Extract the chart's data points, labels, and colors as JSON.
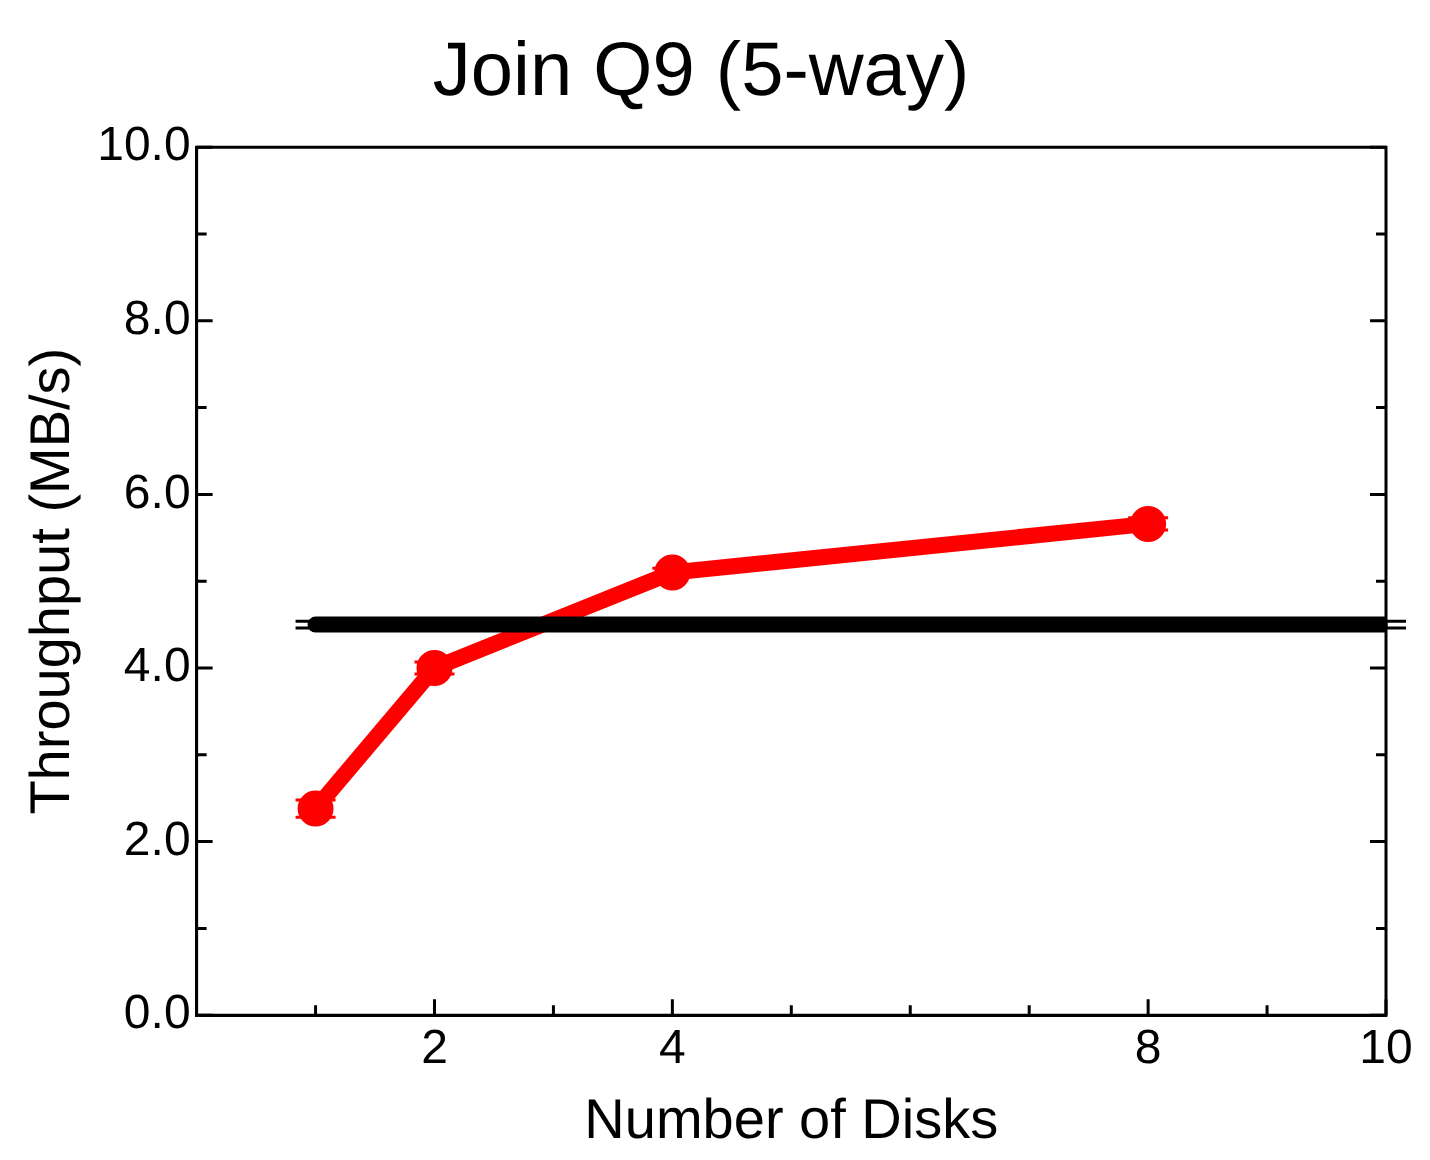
{
  "chart_data": {
    "type": "line",
    "title": "Join Q9 (5-way)",
    "xlabel": "Number of Disks",
    "ylabel": "Throughput (MB/s)",
    "xlim": [
      0,
      10
    ],
    "xticks": [
      {
        "value": 1,
        "label": null
      },
      2,
      {
        "value": 3,
        "label": null
      },
      4,
      {
        "value": 5,
        "label": null
      },
      {
        "value": 6,
        "label": null
      },
      {
        "value": 7,
        "label": null
      },
      8,
      {
        "value": 9,
        "label": null
      },
      10
    ],
    "ylim": [
      0,
      10
    ],
    "yticks": [
      {
        "value": 0,
        "label": "0.0"
      },
      {
        "value": 1,
        "label": null
      },
      {
        "value": 2,
        "label": "2.0"
      },
      {
        "value": 3,
        "label": null
      },
      {
        "value": 4,
        "label": "4.0"
      },
      {
        "value": 5,
        "label": null
      },
      {
        "value": 6,
        "label": "6.0"
      },
      {
        "value": 7,
        "label": null
      },
      {
        "value": 8,
        "label": "8.0"
      },
      {
        "value": 9,
        "label": null
      },
      {
        "value": 10,
        "label": "10.0"
      }
    ],
    "grid": false,
    "legend": false,
    "marker": "circle",
    "line_style": "solid",
    "series": [
      {
        "color": "#000000",
        "x": [
          1,
          10
        ],
        "values": [
          4.5,
          4.5
        ],
        "marker": "none",
        "errors": [
          0.04,
          0.04
        ]
      },
      {
        "color": "#ff0000",
        "x": [
          1,
          2,
          4,
          8
        ],
        "values": [
          2.38,
          4.0,
          5.1,
          5.66
        ],
        "errors": [
          0.1,
          0.07,
          0.05,
          0.07
        ]
      }
    ]
  }
}
